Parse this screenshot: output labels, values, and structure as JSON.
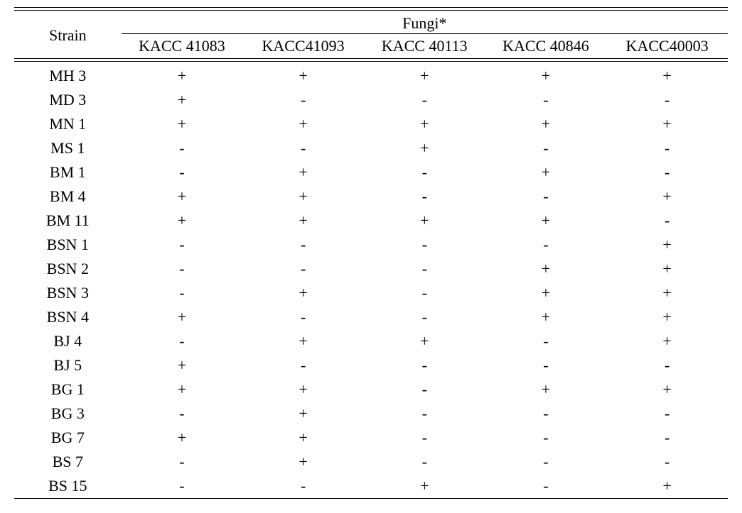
{
  "table": {
    "type": "table",
    "background_color": "#ffffff",
    "text_color": "#000000",
    "rule_color": "#000000",
    "font_family": "Times New Roman",
    "font_size_pt": 16,
    "header": {
      "super_header": "Fungi*",
      "row_label_header": "Strain",
      "columns": [
        "KACC 41083",
        "KACC41093",
        "KACC 40113",
        "KACC 40846",
        "KACC40003"
      ]
    },
    "rows": [
      {
        "strain": "MH 3",
        "v": [
          "+",
          "+",
          "+",
          "+",
          "+"
        ]
      },
      {
        "strain": "MD 3",
        "v": [
          "+",
          "-",
          "-",
          "-",
          "-"
        ]
      },
      {
        "strain": "MN 1",
        "v": [
          "+",
          "+",
          "+",
          "+",
          "+"
        ]
      },
      {
        "strain": "MS 1",
        "v": [
          "-",
          "-",
          "+",
          "-",
          "-"
        ]
      },
      {
        "strain": "BM 1",
        "v": [
          "-",
          "+",
          "-",
          "+",
          "-"
        ]
      },
      {
        "strain": "BM 4",
        "v": [
          "+",
          "+",
          "-",
          "-",
          "+"
        ]
      },
      {
        "strain": "BM 11",
        "v": [
          "+",
          "+",
          "+",
          "+",
          "-"
        ]
      },
      {
        "strain": "BSN 1",
        "v": [
          "-",
          "-",
          "-",
          "-",
          "+"
        ]
      },
      {
        "strain": "BSN 2",
        "v": [
          "-",
          "-",
          "-",
          "+",
          "+"
        ]
      },
      {
        "strain": "BSN 3",
        "v": [
          "-",
          "+",
          "-",
          "+",
          "+"
        ]
      },
      {
        "strain": "BSN 4",
        "v": [
          "+",
          "-",
          "-",
          "+",
          "+"
        ]
      },
      {
        "strain": "BJ 4",
        "v": [
          "-",
          "+",
          "+",
          "-",
          "+"
        ]
      },
      {
        "strain": "BJ 5",
        "v": [
          "+",
          "-",
          "-",
          "-",
          "-"
        ]
      },
      {
        "strain": "BG 1",
        "v": [
          "+",
          "+",
          "-",
          "+",
          "+"
        ]
      },
      {
        "strain": "BG 3",
        "v": [
          "-",
          "+",
          "-",
          "-",
          "-"
        ]
      },
      {
        "strain": "BG 7",
        "v": [
          "+",
          "+",
          "-",
          "-",
          "-"
        ]
      },
      {
        "strain": "BS 7",
        "v": [
          "-",
          "+",
          "-",
          "-",
          "-"
        ]
      },
      {
        "strain": "BS 15",
        "v": [
          "-",
          "-",
          "+",
          "-",
          "+"
        ]
      }
    ]
  }
}
